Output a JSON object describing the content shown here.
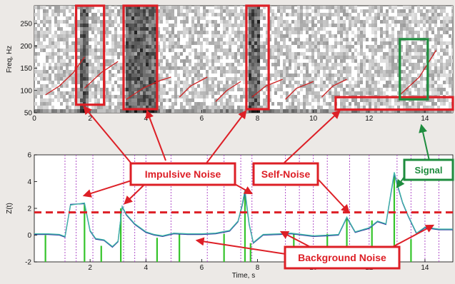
{
  "chart_data": [
    {
      "type": "heatmap",
      "ylabel": "Freq, Hz",
      "xlim": [
        0,
        15
      ],
      "ylim": [
        50,
        290
      ],
      "x_ticks": [
        0,
        2,
        4,
        6,
        8,
        10,
        12,
        14
      ],
      "y_ticks": [
        50,
        100,
        150,
        200,
        250
      ],
      "colormap": "grayscale (dark = high energy)",
      "high_energy_bands": [
        {
          "x0": 1.6,
          "x1": 1.9
        },
        {
          "x0": 3.2,
          "x1": 4.4
        },
        {
          "x0": 7.6,
          "x1": 8.0
        }
      ],
      "contour_color": "#cc2222",
      "pitch_contours": [
        {
          "t": [
            0.4,
            0.9,
            1.4,
            1.8
          ],
          "f": [
            90,
            110,
            140,
            175
          ]
        },
        {
          "t": [
            1.8,
            2.4,
            3.0
          ],
          "f": [
            105,
            140,
            165
          ]
        },
        {
          "t": [
            3.3,
            3.9,
            4.5,
            4.9
          ],
          "f": [
            80,
            105,
            122,
            130
          ]
        },
        {
          "t": [
            5.2,
            5.6,
            6.2
          ],
          "f": [
            85,
            110,
            130
          ]
        },
        {
          "t": [
            6.5,
            6.9,
            7.4
          ],
          "f": [
            75,
            100,
            120
          ]
        },
        {
          "t": [
            7.8,
            8.3,
            8.9
          ],
          "f": [
            85,
            110,
            125
          ]
        },
        {
          "t": [
            9.0,
            9.4,
            10.0
          ],
          "f": [
            80,
            105,
            120
          ]
        },
        {
          "t": [
            10.3,
            10.7,
            11.2
          ],
          "f": [
            85,
            110,
            125
          ]
        },
        {
          "t": [
            13.1,
            13.8,
            14.4
          ],
          "f": [
            90,
            130,
            190
          ]
        }
      ],
      "callouts": [
        {
          "label": "",
          "color": "#dd1f26",
          "x0": 1.5,
          "x1": 2.5,
          "y0": 68,
          "y1": 290
        },
        {
          "label": "",
          "color": "#dd1f26",
          "x0": 3.2,
          "x1": 4.4,
          "y0": 58,
          "y1": 290
        },
        {
          "label": "",
          "color": "#dd1f26",
          "x0": 7.6,
          "x1": 8.4,
          "y0": 58,
          "y1": 290
        },
        {
          "label": "",
          "color": "#dd1f26",
          "x0": 10.8,
          "x1": 15.0,
          "y0": 57,
          "y1": 85
        },
        {
          "label": "",
          "color": "#1e8c3e",
          "x0": 13.1,
          "x1": 14.1,
          "y0": 80,
          "y1": 215
        }
      ]
    },
    {
      "type": "line",
      "xlabel": "Time, s",
      "ylabel": "Z(t)",
      "xlim": [
        0,
        15
      ],
      "ylim": [
        -2,
        6
      ],
      "x_ticks": [
        2,
        4,
        6,
        8,
        10,
        12,
        14
      ],
      "y_ticks": [
        -2,
        0,
        2,
        4,
        6
      ],
      "threshold": 1.7,
      "threshold_color": "#dd1f26",
      "frame_marker_color": "#b04fc8",
      "frame_markers": [
        1.1,
        1.5,
        2.1,
        3.2,
        3.6,
        4.0,
        4.9,
        6.2,
        6.8,
        7.4,
        7.8,
        9.0,
        9.5,
        10.0,
        10.5,
        11.3,
        12.0,
        13.0,
        13.5,
        14.0,
        14.5
      ],
      "detection_color": "#35c42b",
      "detections": [
        {
          "x": 0.4,
          "y": 0.0
        },
        {
          "x": 1.8,
          "y": 2.3
        },
        {
          "x": 2.4,
          "y": -0.8
        },
        {
          "x": 3.1,
          "y": 2.0
        },
        {
          "x": 4.4,
          "y": -0.2
        },
        {
          "x": 5.2,
          "y": 0.1
        },
        {
          "x": 6.8,
          "y": 0.1
        },
        {
          "x": 7.55,
          "y": 3.3
        },
        {
          "x": 7.75,
          "y": -0.6
        },
        {
          "x": 9.3,
          "y": 0.1
        },
        {
          "x": 10.5,
          "y": 0.1
        },
        {
          "x": 11.2,
          "y": 1.3
        },
        {
          "x": 12.1,
          "y": 1.1
        },
        {
          "x": 12.9,
          "y": 4.4
        },
        {
          "x": 13.5,
          "y": -0.3
        }
      ],
      "series": [
        {
          "color": "#2e3a9e",
          "x": [
            0,
            0.5,
            0.9,
            1.1,
            1.3,
            1.8,
            2.0,
            2.2,
            2.5,
            2.8,
            3.0,
            3.15,
            3.3,
            3.6,
            4.0,
            4.3,
            4.6,
            5.0,
            5.5,
            6.0,
            6.5,
            7.0,
            7.3,
            7.45,
            7.55,
            7.7,
            7.85,
            8.2,
            8.8,
            9.2,
            9.6,
            10.0,
            10.5,
            10.9,
            11.2,
            11.5,
            12.0,
            12.3,
            12.6,
            12.9,
            13.0,
            13.2,
            13.4,
            13.7,
            14.0,
            14.5,
            15.0
          ],
          "y": [
            0.05,
            0.05,
            0.0,
            -0.15,
            2.3,
            2.35,
            0.3,
            -0.3,
            -0.4,
            -0.9,
            -0.5,
            2.1,
            1.5,
            0.8,
            0.2,
            0.0,
            -0.1,
            0.1,
            0.05,
            0.05,
            0.1,
            0.3,
            1.0,
            2.2,
            3.2,
            0.8,
            -0.6,
            0.0,
            0.05,
            0.1,
            0.0,
            -0.1,
            -0.05,
            0.0,
            1.3,
            0.2,
            0.5,
            1.0,
            0.8,
            4.6,
            3.8,
            2.4,
            1.4,
            0.1,
            0.55,
            0.4,
            0.4
          ]
        },
        {
          "color": "#3fb8a8",
          "x": [
            0,
            0.5,
            0.9,
            1.1,
            1.3,
            1.8,
            2.0,
            2.2,
            2.5,
            2.8,
            3.0,
            3.15,
            3.3,
            3.6,
            4.0,
            4.3,
            4.6,
            5.0,
            5.5,
            6.0,
            6.5,
            7.0,
            7.3,
            7.45,
            7.55,
            7.7,
            7.85,
            8.2,
            8.8,
            9.2,
            9.6,
            10.0,
            10.5,
            10.9,
            11.2,
            11.5,
            12.0,
            12.3,
            12.6,
            12.9,
            13.0,
            13.2,
            13.4,
            13.7,
            14.0,
            14.5,
            15.0
          ],
          "y": [
            0.1,
            0.1,
            0.05,
            -0.1,
            2.25,
            2.4,
            0.35,
            -0.25,
            -0.35,
            -0.85,
            -0.45,
            2.15,
            1.55,
            0.85,
            0.25,
            0.05,
            -0.05,
            0.15,
            0.1,
            0.1,
            0.15,
            0.35,
            1.05,
            2.3,
            3.4,
            0.85,
            -0.55,
            0.05,
            0.1,
            0.15,
            0.05,
            -0.05,
            0.0,
            0.05,
            1.35,
            0.25,
            0.55,
            1.05,
            0.85,
            4.7,
            3.9,
            2.45,
            1.45,
            0.15,
            0.6,
            0.45,
            0.45
          ]
        }
      ]
    }
  ],
  "annotations": {
    "impulsive_noise": "Impulsive Noise",
    "self_noise": "Self-Noise",
    "signal": "Signal",
    "background_noise": "Background Noise"
  },
  "colors": {
    "callout_red": "#dd1f26",
    "callout_green": "#1e8c3e"
  }
}
